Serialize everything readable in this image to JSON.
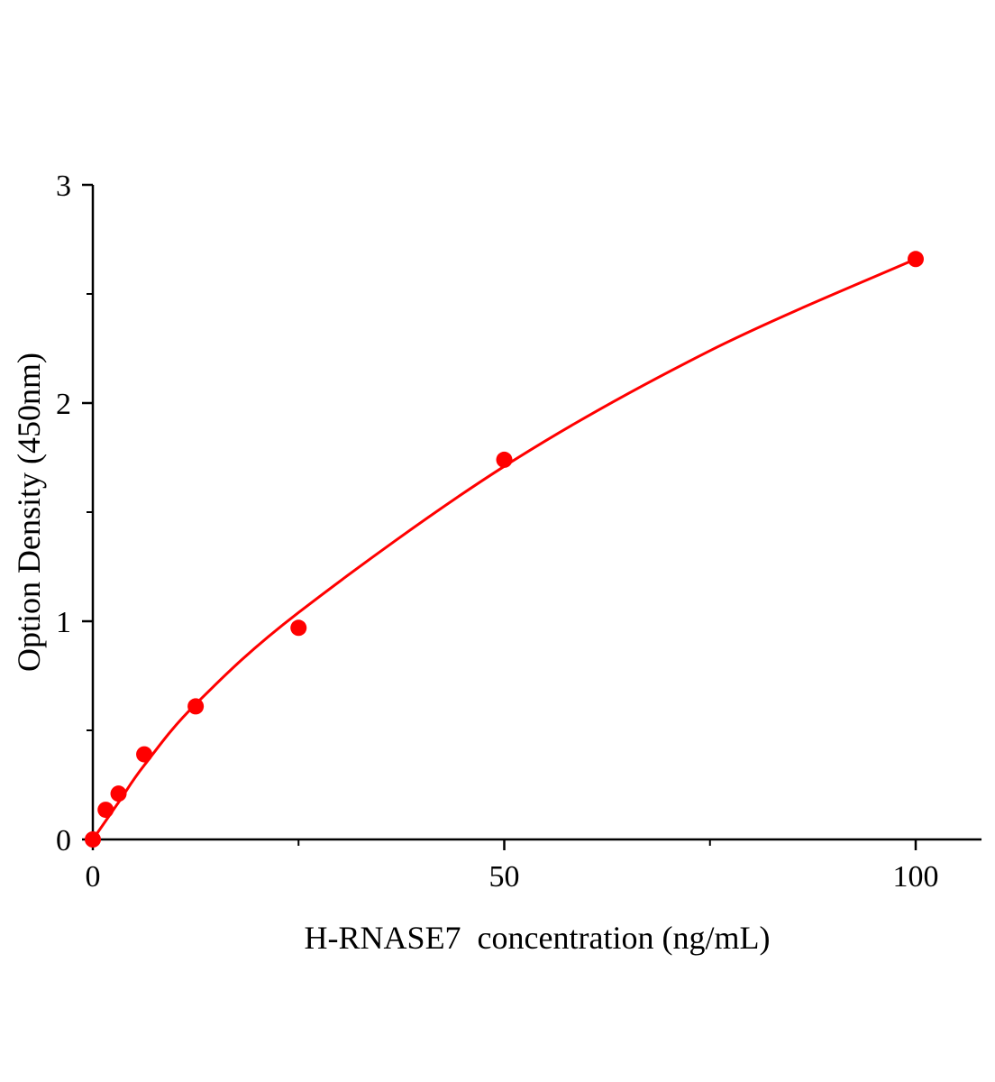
{
  "chart_data": {
    "type": "scatter",
    "title": "",
    "xlabel": "H-RNASE7  concentration (ng/mL)",
    "ylabel": "Option Density (450nm)",
    "xlim": [
      0,
      108
    ],
    "ylim": [
      0,
      3
    ],
    "x_ticks": [
      0,
      50,
      100
    ],
    "x_minor_ticks": [
      25,
      75
    ],
    "y_ticks": [
      0,
      1,
      2,
      3
    ],
    "y_minor_ticks": [
      0.5,
      1.5,
      2.5
    ],
    "grid": false,
    "color": "#ff0000",
    "series": [
      {
        "points": [
          {
            "x": 0,
            "y": 0.0
          },
          {
            "x": 1.56,
            "y": 0.136
          },
          {
            "x": 3.125,
            "y": 0.21
          },
          {
            "x": 6.25,
            "y": 0.39
          },
          {
            "x": 12.5,
            "y": 0.61
          },
          {
            "x": 25,
            "y": 0.97
          },
          {
            "x": 50,
            "y": 1.74
          },
          {
            "x": 100,
            "y": 2.66
          }
        ],
        "fit_curve": [
          {
            "x": 0,
            "y": 0.0
          },
          {
            "x": 3.125,
            "y": 0.17
          },
          {
            "x": 6.25,
            "y": 0.34
          },
          {
            "x": 12.5,
            "y": 0.62
          },
          {
            "x": 25,
            "y": 1.04
          },
          {
            "x": 50,
            "y": 1.71
          },
          {
            "x": 75,
            "y": 2.24
          },
          {
            "x": 100,
            "y": 2.66
          }
        ]
      }
    ]
  }
}
